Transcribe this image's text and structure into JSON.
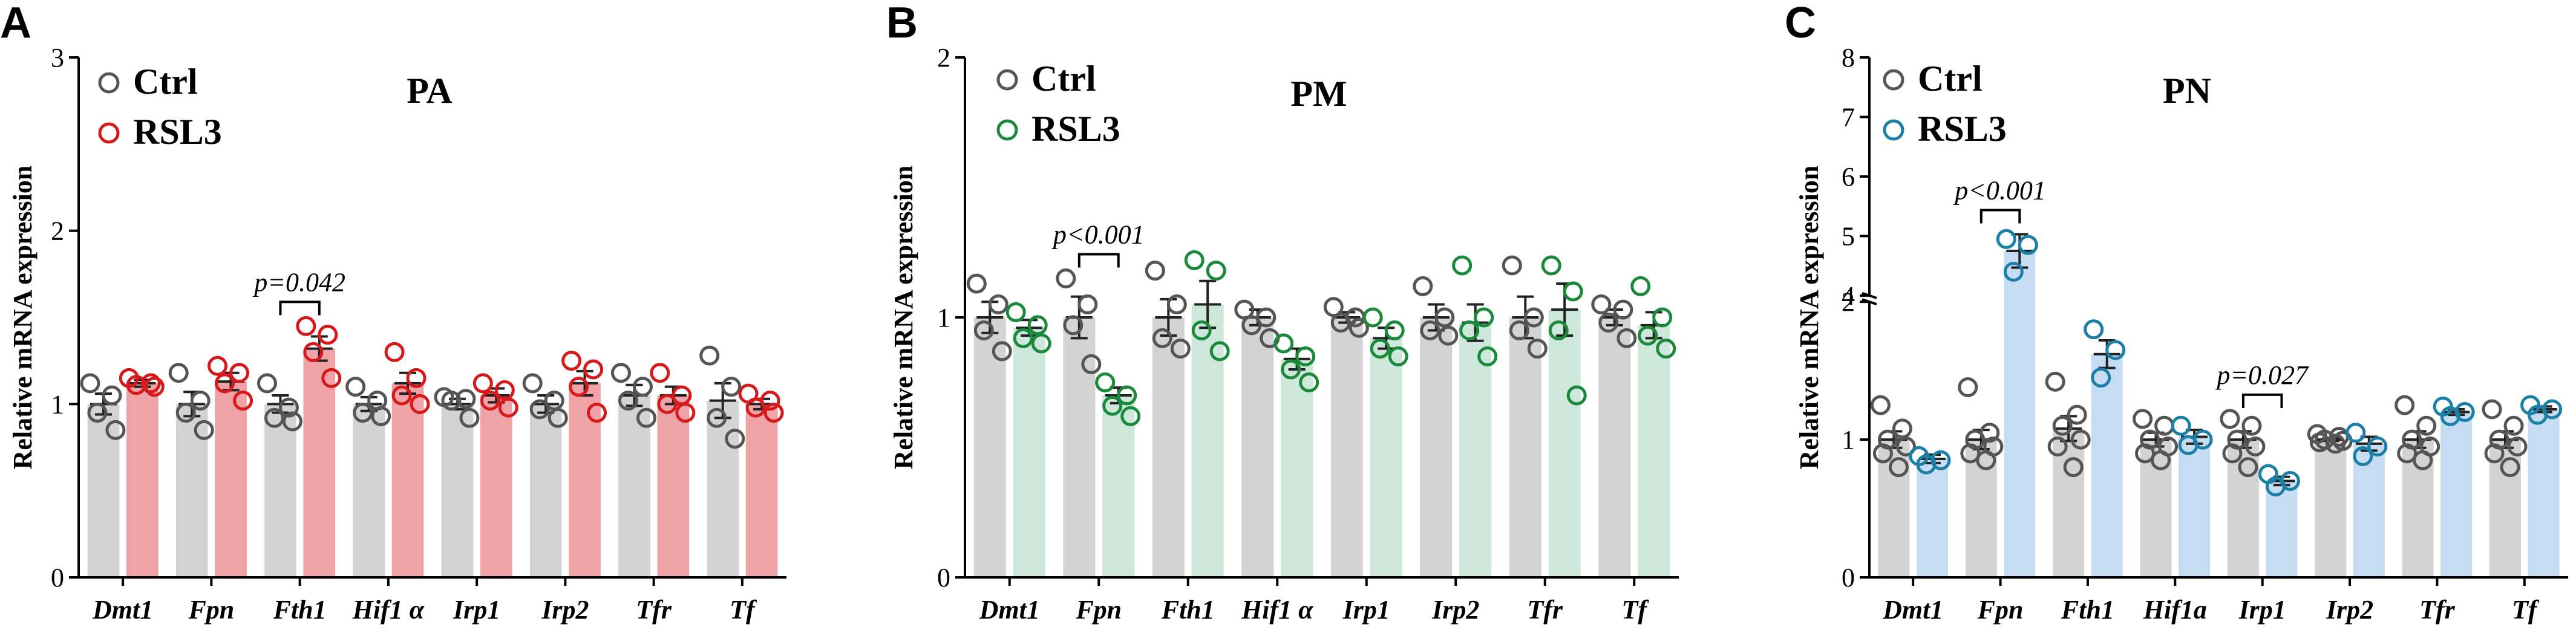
{
  "chart_data": [
    {
      "type": "bar",
      "panel_label": "A",
      "title": "PA",
      "ylabel": "Relative mRNA expression",
      "ylim": [
        0,
        3
      ],
      "yticks": [
        0,
        1,
        2,
        3
      ],
      "categories": [
        "Dmt1",
        "Fpn",
        "Fth1",
        "Hif1 α",
        "Irp1",
        "Irp2",
        "Tfr",
        "Tf"
      ],
      "legend": [
        "Ctrl",
        "RSL3"
      ],
      "colors": {
        "ctrl_bar": "#d3d3d3",
        "ctrl_point": "#555555",
        "treat_bar": "#f0a3a7",
        "treat_point": "#d7191c"
      },
      "series": [
        {
          "name": "Ctrl",
          "values": [
            1.0,
            1.0,
            1.0,
            1.0,
            1.0,
            1.0,
            1.05,
            1.02
          ],
          "points": [
            [
              1.12,
              1.05,
              0.95,
              0.85
            ],
            [
              1.18,
              1.02,
              0.95,
              0.85
            ],
            [
              1.12,
              0.98,
              0.92,
              0.9
            ],
            [
              1.1,
              1.02,
              0.95,
              0.93
            ],
            [
              1.04,
              1.03,
              1.02,
              0.92
            ],
            [
              1.12,
              1.02,
              0.97,
              0.92
            ],
            [
              1.18,
              1.1,
              1.02,
              0.92
            ],
            [
              1.28,
              1.1,
              0.92,
              0.8
            ]
          ],
          "errors": [
            0.06,
            0.07,
            0.05,
            0.04,
            0.03,
            0.05,
            0.06,
            0.1
          ]
        },
        {
          "name": "RSL3",
          "values": [
            1.12,
            1.13,
            1.32,
            1.12,
            1.05,
            1.12,
            1.05,
            1.0
          ],
          "points": [
            [
              1.15,
              1.12,
              1.11,
              1.1
            ],
            [
              1.22,
              1.18,
              1.12,
              1.02
            ],
            [
              1.45,
              1.4,
              1.3,
              1.15
            ],
            [
              1.3,
              1.15,
              1.05,
              1.0
            ],
            [
              1.12,
              1.08,
              1.02,
              0.98
            ],
            [
              1.25,
              1.2,
              1.1,
              0.95
            ],
            [
              1.18,
              1.05,
              1.0,
              0.95
            ],
            [
              1.06,
              1.02,
              0.98,
              0.95
            ]
          ],
          "errors": [
            0.02,
            0.05,
            0.07,
            0.06,
            0.04,
            0.07,
            0.05,
            0.03
          ]
        }
      ],
      "annotations": [
        {
          "text": "p=0.042",
          "category_index": 2
        }
      ]
    },
    {
      "type": "bar",
      "panel_label": "B",
      "title": "PM",
      "ylabel": "Relative mRNA expression",
      "ylim": [
        0,
        2
      ],
      "yticks": [
        0,
        1,
        2
      ],
      "categories": [
        "Dmt1",
        "Fpn",
        "Fth1",
        "Hif1 α",
        "Irp1",
        "Irp2",
        "Tfr",
        "Tf"
      ],
      "legend": [
        "Ctrl",
        "RSL3"
      ],
      "colors": {
        "ctrl_bar": "#d3d3d3",
        "ctrl_point": "#555555",
        "treat_bar": "#cde8db",
        "treat_point": "#1a8a3a"
      },
      "series": [
        {
          "name": "Ctrl",
          "values": [
            1.0,
            1.0,
            1.0,
            1.0,
            1.0,
            1.0,
            1.0,
            1.0
          ],
          "points": [
            [
              1.13,
              1.05,
              0.95,
              0.87
            ],
            [
              1.15,
              1.05,
              0.97,
              0.82
            ],
            [
              1.18,
              1.05,
              0.92,
              0.88
            ],
            [
              1.03,
              1.0,
              0.97,
              0.92
            ],
            [
              1.04,
              1.0,
              0.98,
              0.96
            ],
            [
              1.12,
              1.0,
              0.95,
              0.93
            ],
            [
              1.2,
              1.0,
              0.95,
              0.88
            ],
            [
              1.05,
              1.03,
              0.98,
              0.92
            ]
          ],
          "errors": [
            0.06,
            0.08,
            0.07,
            0.03,
            0.02,
            0.05,
            0.08,
            0.03
          ]
        },
        {
          "name": "RSL3",
          "values": [
            0.96,
            0.7,
            1.05,
            0.84,
            0.92,
            0.98,
            1.03,
            0.97
          ],
          "points": [
            [
              1.02,
              0.97,
              0.92,
              0.9
            ],
            [
              0.75,
              0.7,
              0.66,
              0.62
            ],
            [
              1.22,
              1.18,
              0.95,
              0.87
            ],
            [
              0.9,
              0.85,
              0.8,
              0.75
            ],
            [
              1.0,
              0.95,
              0.88,
              0.85
            ],
            [
              1.2,
              1.0,
              0.95,
              0.85
            ],
            [
              1.2,
              1.1,
              0.95,
              0.7
            ],
            [
              1.12,
              1.0,
              0.93,
              0.88
            ]
          ],
          "errors": [
            0.03,
            0.03,
            0.09,
            0.04,
            0.04,
            0.07,
            0.1,
            0.05
          ]
        }
      ],
      "annotations": [
        {
          "text": "p<0.001",
          "category_index": 1
        }
      ]
    },
    {
      "type": "bar",
      "panel_label": "C",
      "title": "PN",
      "ylabel": "Relative mRNA expression",
      "ylim": [
        0,
        8
      ],
      "yticks": [
        0,
        1,
        2,
        4,
        5,
        6,
        7,
        8
      ],
      "axis_break": [
        2,
        4
      ],
      "categories": [
        "Dmt1",
        "Fpn",
        "Fth1",
        "Hif1a",
        "Irp1",
        "Irp2",
        "Tfr",
        "Tf"
      ],
      "legend": [
        "Ctrl",
        "RSL3"
      ],
      "colors": {
        "ctrl_bar": "#d3d3d3",
        "ctrl_point": "#555555",
        "treat_bar": "#c5dcf2",
        "treat_point": "#1b7fa8"
      },
      "series": [
        {
          "name": "Ctrl",
          "values": [
            1.0,
            1.0,
            1.08,
            1.0,
            1.0,
            1.0,
            1.0,
            1.0
          ],
          "points": [
            [
              1.25,
              1.08,
              1.0,
              0.95,
              0.9,
              0.8
            ],
            [
              1.38,
              1.05,
              1.0,
              0.95,
              0.9,
              0.85
            ],
            [
              1.42,
              1.18,
              1.1,
              1.0,
              0.95,
              0.8
            ],
            [
              1.15,
              1.1,
              1.0,
              0.95,
              0.9,
              0.85
            ],
            [
              1.15,
              1.1,
              1.0,
              0.95,
              0.9,
              0.8
            ],
            [
              1.04,
              1.02,
              1.0,
              0.99,
              0.98,
              0.97
            ],
            [
              1.25,
              1.1,
              1.0,
              0.95,
              0.9,
              0.85
            ],
            [
              1.22,
              1.1,
              1.0,
              0.95,
              0.9,
              0.8
            ]
          ],
          "errors": [
            0.06,
            0.07,
            0.09,
            0.05,
            0.06,
            0.01,
            0.06,
            0.06
          ]
        },
        {
          "name": "RSL3",
          "values": [
            0.86,
            4.75,
            1.62,
            1.02,
            0.7,
            0.97,
            1.2,
            1.22
          ],
          "points": [
            [
              0.88,
              0.85,
              0.82
            ],
            [
              4.95,
              4.85,
              4.4
            ],
            [
              1.8,
              1.65,
              1.45
            ],
            [
              1.1,
              1.0,
              0.96
            ],
            [
              0.75,
              0.7,
              0.66
            ],
            [
              1.05,
              0.95,
              0.88
            ],
            [
              1.24,
              1.2,
              1.17
            ],
            [
              1.25,
              1.22,
              1.18
            ]
          ],
          "errors": [
            0.03,
            0.28,
            0.1,
            0.05,
            0.03,
            0.05,
            0.02,
            0.02
          ]
        }
      ],
      "annotations": [
        {
          "text": "p<0.001",
          "category_index": 1
        },
        {
          "text": "p=0.027",
          "category_index": 4
        }
      ]
    }
  ]
}
